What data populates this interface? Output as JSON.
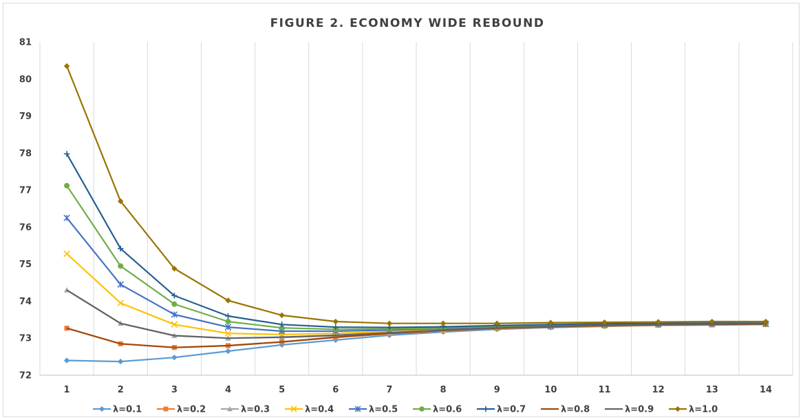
{
  "chart_data": {
    "type": "line",
    "title": "FIGURE 2. ECONOMY WIDE REBOUND",
    "xlabel": "",
    "ylabel": "",
    "x": [
      1,
      2,
      3,
      4,
      5,
      6,
      7,
      8,
      9,
      10,
      11,
      12,
      13,
      14
    ],
    "ylim": [
      72,
      81
    ],
    "yticks": [
      72,
      73,
      74,
      75,
      76,
      77,
      78,
      79,
      80,
      81
    ],
    "grid": "vertical",
    "legend": "bottom",
    "series": [
      {
        "name": "λ=0.1",
        "color": "#5b9bd5",
        "marker": "diamond",
        "values": [
          72.4,
          72.37,
          72.48,
          72.65,
          72.82,
          72.95,
          73.08,
          73.17,
          73.24,
          73.29,
          73.32,
          73.35,
          73.36,
          73.37
        ]
      },
      {
        "name": "λ=0.2",
        "color": "#ed7d31",
        "marker": "square",
        "values": [
          73.27,
          72.85,
          72.75,
          72.8,
          72.9,
          73.02,
          73.12,
          73.2,
          73.26,
          73.3,
          73.33,
          73.35,
          73.36,
          73.37
        ]
      },
      {
        "name": "λ=0.3",
        "color": "#a5a5a5",
        "marker": "triangle",
        "values": [
          74.3,
          73.4,
          73.07,
          73.0,
          73.02,
          73.07,
          73.14,
          73.21,
          73.27,
          73.31,
          73.34,
          73.36,
          73.37,
          73.38
        ]
      },
      {
        "name": "λ=0.4",
        "color": "#ffc000",
        "marker": "x",
        "values": [
          75.28,
          73.95,
          73.37,
          73.13,
          73.1,
          73.13,
          73.18,
          73.23,
          73.28,
          73.32,
          73.35,
          73.37,
          73.38,
          73.38
        ]
      },
      {
        "name": "λ=0.5",
        "color": "#4472c4",
        "marker": "star",
        "values": [
          76.25,
          74.45,
          73.64,
          73.3,
          73.19,
          73.19,
          73.22,
          73.26,
          73.3,
          73.33,
          73.36,
          73.38,
          73.39,
          73.39
        ]
      },
      {
        "name": "λ=0.6",
        "color": "#70ad47",
        "marker": "circle",
        "values": [
          77.12,
          74.95,
          73.92,
          73.45,
          73.28,
          73.24,
          73.25,
          73.28,
          73.32,
          73.35,
          73.37,
          73.39,
          73.4,
          73.4
        ]
      },
      {
        "name": "λ=0.7",
        "color": "#255e91",
        "marker": "plus",
        "values": [
          77.98,
          75.42,
          74.15,
          73.6,
          73.37,
          73.3,
          73.29,
          73.31,
          73.34,
          73.37,
          73.39,
          73.4,
          73.41,
          73.41
        ]
      },
      {
        "name": "λ=0.8",
        "color": "#9e480e",
        "marker": "none",
        "values": [
          73.27,
          72.85,
          72.75,
          72.8,
          72.9,
          73.03,
          73.13,
          73.21,
          73.27,
          73.31,
          73.34,
          73.36,
          73.37,
          73.38
        ]
      },
      {
        "name": "λ=0.9",
        "color": "#636363",
        "marker": "none",
        "values": [
          74.3,
          73.4,
          73.07,
          73.0,
          73.03,
          73.08,
          73.15,
          73.22,
          73.28,
          73.32,
          73.35,
          73.37,
          73.38,
          73.39
        ]
      },
      {
        "name": "λ=1.0",
        "color": "#997300",
        "marker": "diamond",
        "values": [
          80.35,
          76.7,
          74.88,
          74.02,
          73.62,
          73.45,
          73.4,
          73.4,
          73.4,
          73.42,
          73.43,
          73.44,
          73.45,
          73.45
        ]
      }
    ]
  }
}
